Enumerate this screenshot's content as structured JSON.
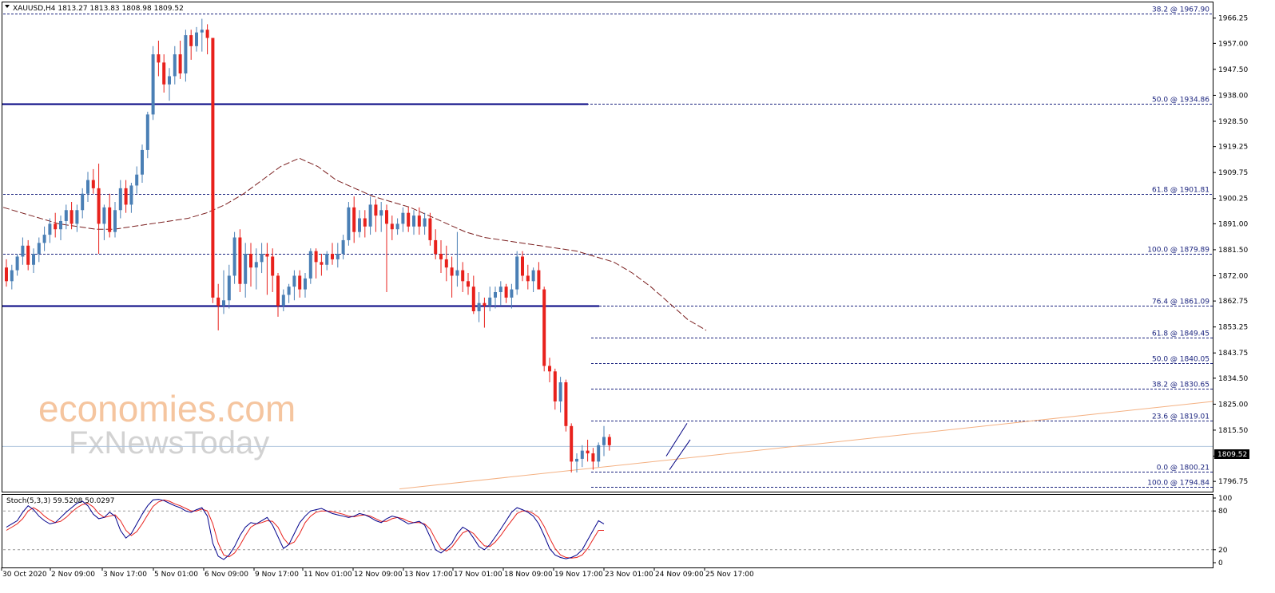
{
  "header": {
    "symbol_line": "XAUUSD,H4  1813.27 1813.83 1808.98 1809.52",
    "stoch_line": "Stoch(5,3,3) 59.5208 50.0297"
  },
  "watermark": {
    "line1": "economies.com",
    "line2": "FxNewsToday"
  },
  "colors": {
    "bull": "#4a7fb5",
    "bear": "#e8211c",
    "level": "#000080",
    "fib": "#1a237e",
    "ma": "#7b1f1f",
    "stoch_main": "#00008b",
    "stoch_signal": "#e8211c",
    "watermark": "#f0a060",
    "watermark2": "#c8c8c8"
  },
  "chart_data": {
    "type": "line",
    "symbol": "XAUUSD",
    "timeframe": "H4",
    "last_price": "1809.52",
    "ylim": [
      1793,
      1972
    ],
    "yticks": [
      "1966.25",
      "1957.00",
      "1947.50",
      "1938.00",
      "1928.50",
      "1919.25",
      "1909.75",
      "1900.25",
      "1891.00",
      "1881.50",
      "1872.00",
      "1862.75",
      "1853.25",
      "1843.75",
      "1834.50",
      "1825.00",
      "1815.50",
      "1806.00",
      "1796.75"
    ],
    "ytick_values": [
      1966.25,
      1957.0,
      1947.5,
      1938.0,
      1928.5,
      1919.25,
      1909.75,
      1900.25,
      1891.0,
      1881.5,
      1872.0,
      1862.75,
      1853.25,
      1843.75,
      1834.5,
      1825.0,
      1815.5,
      1806.0,
      1796.75
    ],
    "xticks": [
      "30 Oct 2020",
      "2 Nov 09:00",
      "3 Nov 17:00",
      "5 Nov 01:00",
      "6 Nov 09:00",
      "9 Nov 17:00",
      "11 Nov 01:00",
      "12 Nov 09:00",
      "13 Nov 17:00",
      "17 Nov 01:00",
      "18 Nov 09:00",
      "19 Nov 17:00",
      "23 Nov 01:00",
      "24 Nov 09:00",
      "25 Nov 17:00"
    ],
    "candles": [
      [
        1875,
        1878,
        1868,
        1870
      ],
      [
        1870,
        1876,
        1867,
        1874
      ],
      [
        1874,
        1880,
        1872,
        1879
      ],
      [
        1879,
        1886,
        1876,
        1883
      ],
      [
        1883,
        1885,
        1874,
        1876
      ],
      [
        1876,
        1882,
        1873,
        1880
      ],
      [
        1880,
        1886,
        1877,
        1884
      ],
      [
        1884,
        1890,
        1881,
        1887
      ],
      [
        1887,
        1893,
        1884,
        1891
      ],
      [
        1891,
        1895,
        1886,
        1889
      ],
      [
        1889,
        1894,
        1885,
        1892
      ],
      [
        1892,
        1898,
        1889,
        1896
      ],
      [
        1896,
        1899,
        1889,
        1891
      ],
      [
        1891,
        1898,
        1888,
        1896
      ],
      [
        1896,
        1904,
        1893,
        1902
      ],
      [
        1902,
        1910,
        1899,
        1907
      ],
      [
        1907,
        1911,
        1902,
        1904
      ],
      [
        1904,
        1913,
        1880,
        1891
      ],
      [
        1891,
        1898,
        1885,
        1897
      ],
      [
        1897,
        1902,
        1886,
        1888
      ],
      [
        1888,
        1899,
        1886,
        1896
      ],
      [
        1896,
        1907,
        1893,
        1904
      ],
      [
        1904,
        1907,
        1895,
        1898
      ],
      [
        1898,
        1906,
        1895,
        1905
      ],
      [
        1905,
        1912,
        1902,
        1909
      ],
      [
        1909,
        1920,
        1906,
        1918
      ],
      [
        1918,
        1932,
        1915,
        1931
      ],
      [
        1931,
        1956,
        1929,
        1953
      ],
      [
        1953,
        1958,
        1945,
        1950
      ],
      [
        1950,
        1953,
        1939,
        1942
      ],
      [
        1942,
        1948,
        1936,
        1945
      ],
      [
        1945,
        1956,
        1942,
        1953
      ],
      [
        1953,
        1958,
        1944,
        1946
      ],
      [
        1946,
        1962,
        1943,
        1960
      ],
      [
        1960,
        1962,
        1951,
        1956
      ],
      [
        1956,
        1963,
        1954,
        1961
      ],
      [
        1961,
        1966,
        1954,
        1962
      ],
      [
        1962,
        1964,
        1953,
        1959
      ],
      [
        1959,
        1959,
        1862,
        1864
      ],
      [
        1864,
        1869,
        1852,
        1861
      ],
      [
        1861,
        1874,
        1858,
        1863
      ],
      [
        1863,
        1876,
        1860,
        1872
      ],
      [
        1872,
        1888,
        1869,
        1886
      ],
      [
        1886,
        1889,
        1866,
        1869
      ],
      [
        1869,
        1884,
        1864,
        1880
      ],
      [
        1880,
        1884,
        1868,
        1875
      ],
      [
        1875,
        1882,
        1867,
        1877
      ],
      [
        1877,
        1884,
        1873,
        1880
      ],
      [
        1880,
        1884,
        1865,
        1879
      ],
      [
        1879,
        1882,
        1866,
        1872
      ],
      [
        1872,
        1873,
        1857,
        1861
      ],
      [
        1861,
        1867,
        1859,
        1865
      ],
      [
        1865,
        1869,
        1862,
        1868
      ],
      [
        1868,
        1874,
        1863,
        1872
      ],
      [
        1872,
        1874,
        1864,
        1867
      ],
      [
        1867,
        1873,
        1864,
        1871
      ],
      [
        1871,
        1882,
        1869,
        1881
      ],
      [
        1881,
        1882,
        1871,
        1877
      ],
      [
        1877,
        1880,
        1872,
        1876
      ],
      [
        1876,
        1881,
        1874,
        1880
      ],
      [
        1880,
        1884,
        1876,
        1878
      ],
      [
        1878,
        1884,
        1875,
        1880
      ],
      [
        1880,
        1887,
        1878,
        1885
      ],
      [
        1885,
        1899,
        1883,
        1897
      ],
      [
        1897,
        1901,
        1884,
        1888
      ],
      [
        1888,
        1896,
        1886,
        1893
      ],
      [
        1893,
        1896,
        1886,
        1890
      ],
      [
        1890,
        1901,
        1887,
        1898
      ],
      [
        1898,
        1900,
        1888,
        1894
      ],
      [
        1894,
        1899,
        1888,
        1896
      ],
      [
        1896,
        1898,
        1866,
        1891
      ],
      [
        1891,
        1894,
        1885,
        1889
      ],
      [
        1889,
        1893,
        1887,
        1891
      ],
      [
        1891,
        1897,
        1888,
        1895
      ],
      [
        1895,
        1897,
        1888,
        1890
      ],
      [
        1890,
        1896,
        1887,
        1894
      ],
      [
        1894,
        1897,
        1887,
        1890
      ],
      [
        1890,
        1895,
        1887,
        1893
      ],
      [
        1893,
        1895,
        1883,
        1885
      ],
      [
        1885,
        1889,
        1878,
        1880
      ],
      [
        1880,
        1885,
        1873,
        1878
      ],
      [
        1878,
        1883,
        1870,
        1875
      ],
      [
        1875,
        1879,
        1864,
        1872
      ],
      [
        1872,
        1888,
        1868,
        1874
      ],
      [
        1874,
        1877,
        1866,
        1870
      ],
      [
        1870,
        1873,
        1865,
        1868
      ],
      [
        1868,
        1872,
        1858,
        1859
      ],
      [
        1859,
        1866,
        1855,
        1862
      ],
      [
        1862,
        1864,
        1853,
        1861
      ],
      [
        1861,
        1868,
        1859,
        1864
      ],
      [
        1864,
        1868,
        1860,
        1866
      ],
      [
        1866,
        1870,
        1861,
        1868
      ],
      [
        1868,
        1869,
        1862,
        1864
      ],
      [
        1864,
        1869,
        1860,
        1867
      ],
      [
        1867,
        1881,
        1865,
        1879
      ],
      [
        1879,
        1881,
        1870,
        1872
      ],
      [
        1872,
        1876,
        1867,
        1870
      ],
      [
        1870,
        1875,
        1866,
        1874
      ],
      [
        1874,
        1877,
        1868,
        1867
      ],
      [
        1867,
        1868,
        1837,
        1839
      ],
      [
        1839,
        1842,
        1833,
        1837
      ],
      [
        1837,
        1838,
        1823,
        1826
      ],
      [
        1826,
        1835,
        1822,
        1833
      ],
      [
        1833,
        1834,
        1815,
        1817
      ],
      [
        1817,
        1818,
        1800,
        1804
      ],
      [
        1804,
        1807,
        1800,
        1805
      ],
      [
        1805,
        1810,
        1802,
        1808
      ],
      [
        1808,
        1812,
        1804,
        1807
      ],
      [
        1807,
        1809,
        1801,
        1804
      ],
      [
        1804,
        1811,
        1802,
        1810
      ],
      [
        1810,
        1817,
        1806,
        1813
      ],
      [
        1813,
        1814,
        1808,
        1810
      ]
    ],
    "moving_average": [
      1897,
      1895,
      1893,
      1891,
      1890,
      1889,
      1889,
      1890,
      1891,
      1892,
      1893,
      1895,
      1898,
      1902,
      1907,
      1912,
      1915,
      1912,
      1907,
      1904,
      1901,
      1899,
      1897,
      1894,
      1891,
      1888,
      1886,
      1885,
      1884,
      1883,
      1882,
      1881,
      1879,
      1877,
      1873,
      1868,
      1862,
      1856,
      1852
    ],
    "levels": [
      {
        "name": "resistance",
        "value": 1934.86
      },
      {
        "name": "support",
        "value": 1861.09
      }
    ],
    "fibonacci_upper": [
      {
        "label": "38.2 @ 1967.90",
        "value": 1967.9
      },
      {
        "label": "50.0 @ 1934.86",
        "value": 1934.86
      },
      {
        "label": "61.8 @ 1901.81",
        "value": 1901.81
      },
      {
        "label": "100.0 @ 1879.89",
        "value": 1879.89
      }
    ],
    "fibonacci_lower": [
      {
        "label": "76.4 @ 1861.09",
        "value": 1861.09
      },
      {
        "label": "61.8 @ 1849.45",
        "value": 1849.45
      },
      {
        "label": "50.0 @ 1840.05",
        "value": 1840.05
      },
      {
        "label": "38.2 @ 1830.65",
        "value": 1830.65
      },
      {
        "label": "23.6 @ 1819.01",
        "value": 1819.01
      },
      {
        "label": "0.0 @ 1800.21",
        "value": 1800.21
      },
      {
        "label": "100.0 @ 1794.84",
        "value": 1794.84
      }
    ],
    "trendline": {
      "from": 1794.0,
      "to": 1826.0
    },
    "stochastic": {
      "name": "Stoch(5,3,3)",
      "main_value": "59.5208",
      "signal_value": "50.0297",
      "yticks": [
        "100",
        "80",
        "20",
        "0"
      ],
      "ytick_values": [
        100,
        80,
        20,
        0
      ],
      "main": [
        55,
        60,
        65,
        78,
        88,
        82,
        72,
        65,
        60,
        62,
        70,
        78,
        85,
        92,
        95,
        88,
        75,
        68,
        70,
        78,
        72,
        50,
        38,
        45,
        60,
        75,
        88,
        97,
        98,
        96,
        92,
        88,
        85,
        80,
        78,
        82,
        85,
        72,
        30,
        10,
        5,
        12,
        25,
        42,
        55,
        62,
        60,
        65,
        70,
        58,
        40,
        22,
        28,
        45,
        62,
        72,
        80,
        82,
        84,
        80,
        76,
        74,
        72,
        70,
        72,
        76,
        74,
        70,
        65,
        62,
        68,
        72,
        70,
        65,
        60,
        62,
        64,
        58,
        40,
        20,
        15,
        22,
        30,
        45,
        55,
        50,
        38,
        25,
        20,
        28,
        40,
        52,
        65,
        78,
        85,
        82,
        78,
        72,
        60,
        42,
        22,
        12,
        8,
        6,
        8,
        12,
        20,
        35,
        50,
        65,
        60
      ],
      "signal": [
        50,
        55,
        60,
        68,
        80,
        85,
        80,
        72,
        66,
        62,
        64,
        70,
        78,
        85,
        90,
        92,
        86,
        76,
        70,
        72,
        74,
        65,
        50,
        42,
        48,
        60,
        74,
        87,
        94,
        97,
        95,
        91,
        88,
        84,
        80,
        80,
        83,
        80,
        60,
        30,
        12,
        9,
        15,
        27,
        42,
        55,
        60,
        62,
        65,
        64,
        55,
        38,
        28,
        32,
        45,
        62,
        72,
        78,
        80,
        80,
        79,
        77,
        75,
        72,
        71,
        73,
        74,
        72,
        68,
        64,
        64,
        68,
        70,
        68,
        64,
        62,
        62,
        60,
        52,
        36,
        22,
        18,
        24,
        35,
        46,
        50,
        45,
        35,
        26,
        25,
        32,
        42,
        54,
        65,
        76,
        80,
        80,
        76,
        70,
        56,
        38,
        22,
        12,
        8,
        7,
        8,
        12,
        22,
        36,
        50,
        50
      ]
    }
  }
}
